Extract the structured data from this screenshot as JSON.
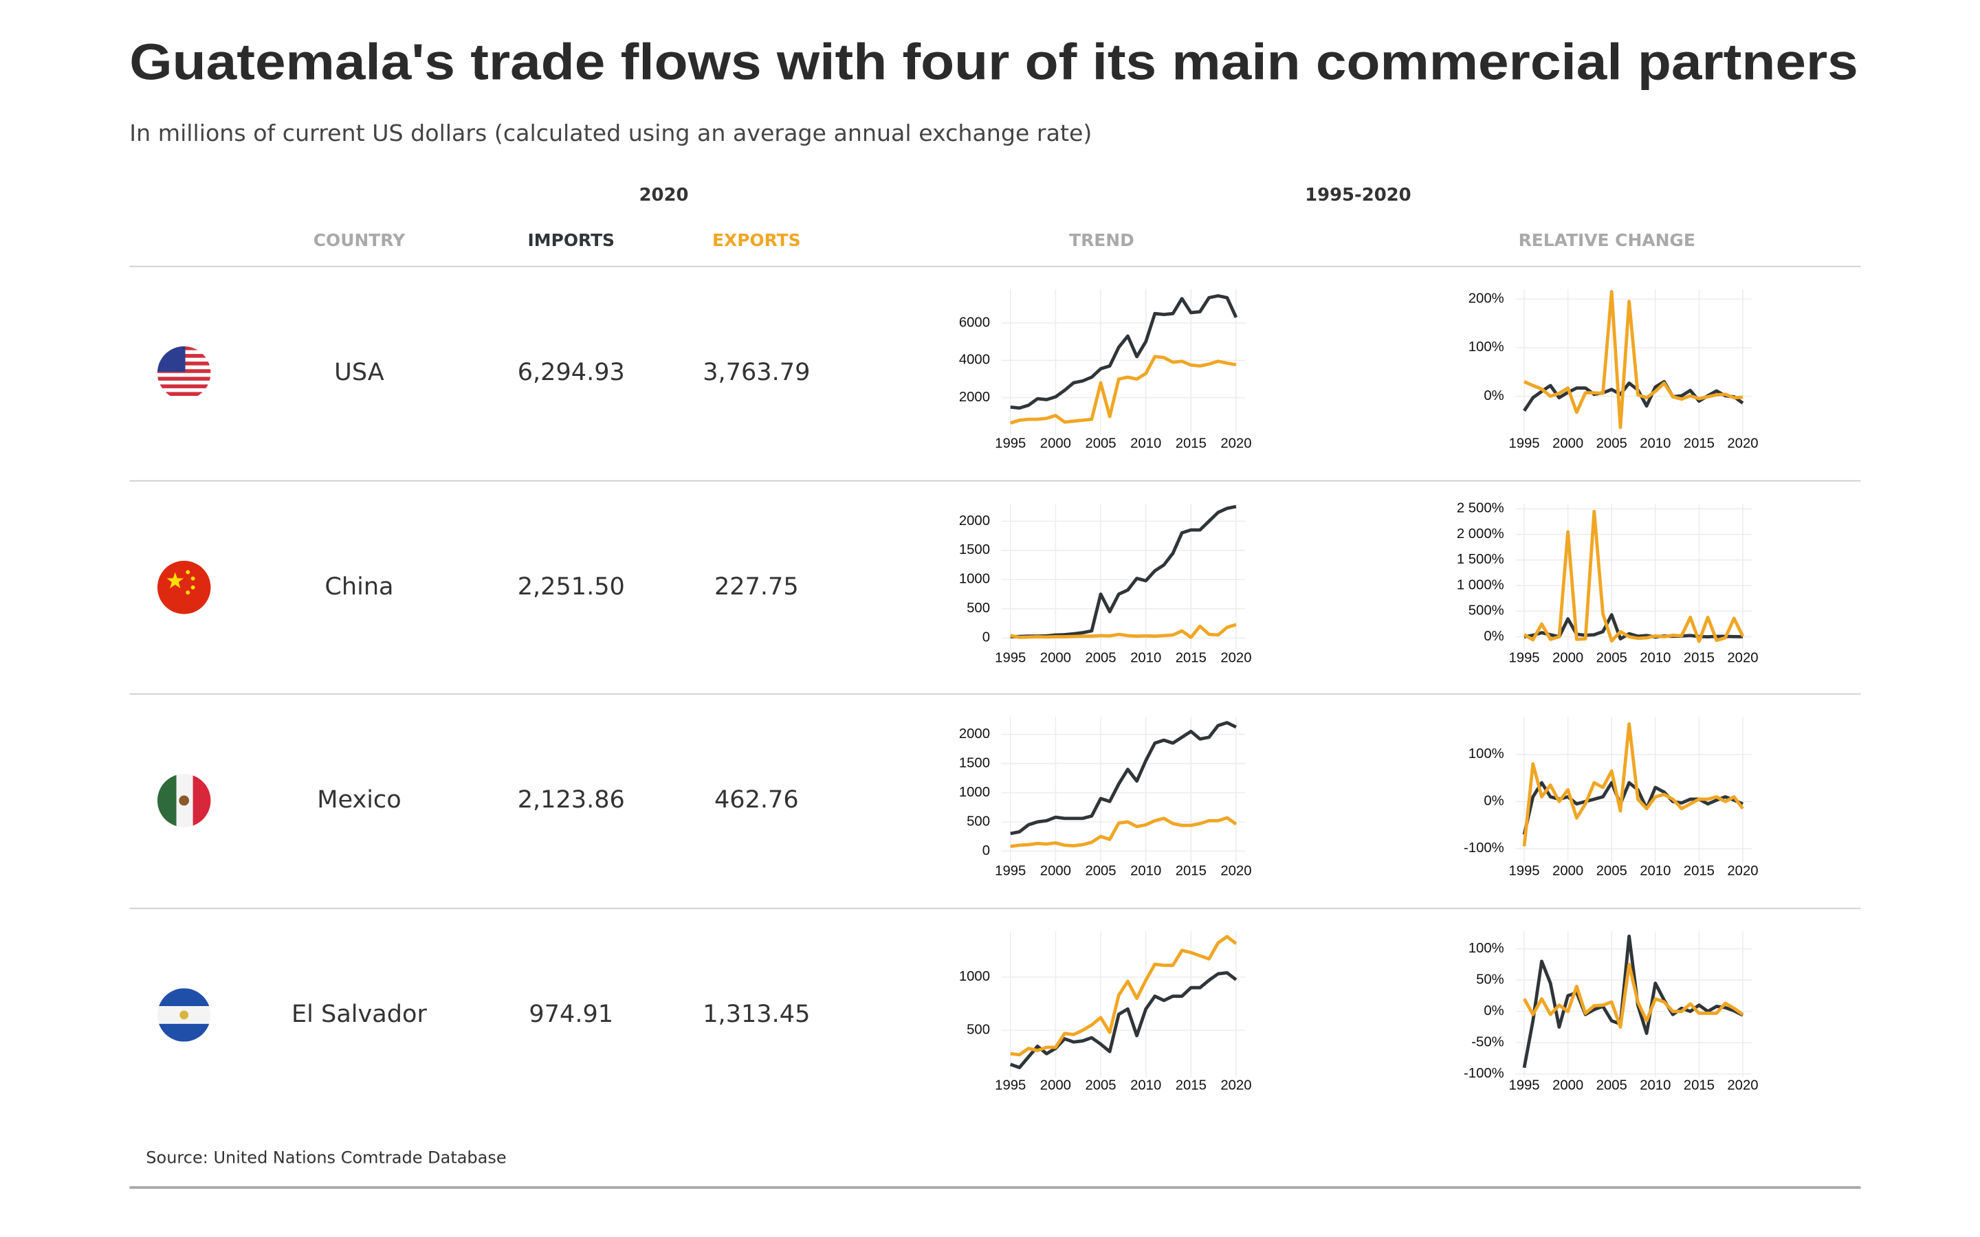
{
  "title": "Guatemala's trade flows with four of its main commercial partners",
  "subtitle": "In millions of current US dollars (calculated using an average annual exchange rate)",
  "table": {
    "group_headers": [
      "2020",
      "1995-2020"
    ],
    "columns": [
      "COUNTRY",
      "IMPORTS",
      "EXPORTS",
      "TREND",
      "RELATIVE CHANGE"
    ],
    "rows": [
      [
        "USA",
        "6,294.93",
        "3,763.79"
      ],
      [
        "China",
        "2,251.50",
        "227.75"
      ],
      [
        "Mexico",
        "2,123.86",
        "462.76"
      ],
      [
        "El Salvador",
        "974.91",
        "1,313.45"
      ]
    ]
  },
  "source": "Source: United Nations Comtrade Database",
  "chart_data": [
    {
      "type": "line",
      "x": [
        1995,
        1996,
        1997,
        1998,
        1999,
        2000,
        2001,
        2002,
        2003,
        2004,
        2005,
        2006,
        2007,
        2008,
        2009,
        2010,
        2011,
        2012,
        2013,
        2014,
        2015,
        2016,
        2017,
        2018,
        2019,
        2020
      ],
      "xlim": [
        1994,
        2021
      ],
      "xticks": [
        1995,
        2000,
        2005,
        2010,
        2015,
        2020
      ],
      "ylim": [
        0,
        7800
      ],
      "yticks": [
        2000,
        4000,
        6000
      ],
      "grid": true,
      "series": [
        {
          "color": "#2f3538",
          "values": [
            1500,
            1450,
            1600,
            1950,
            1900,
            2050,
            2400,
            2800,
            2900,
            3100,
            3550,
            3700,
            4700,
            5300,
            4200,
            5000,
            6500,
            6450,
            6500,
            7300,
            6550,
            6600,
            7350,
            7450,
            7350,
            6294.93
          ]
        },
        {
          "color": "#f0a624",
          "values": [
            650,
            800,
            850,
            850,
            900,
            1050,
            700,
            750,
            800,
            850,
            2800,
            1000,
            3000,
            3100,
            3000,
            3300,
            4200,
            4150,
            3900,
            3950,
            3750,
            3700,
            3800,
            3950,
            3850,
            3763.79
          ]
        }
      ]
    },
    {
      "type": "line",
      "x": [
        1995,
        1996,
        1997,
        1998,
        1999,
        2000,
        2001,
        2002,
        2003,
        2004,
        2005,
        2006,
        2007,
        2008,
        2009,
        2010,
        2011,
        2012,
        2013,
        2014,
        2015,
        2016,
        2017,
        2018,
        2019,
        2020
      ],
      "xlim": [
        1994,
        2021
      ],
      "xticks": [
        1995,
        2000,
        2005,
        2010,
        2015,
        2020
      ],
      "ylim": [
        -80,
        220
      ],
      "yticks": [
        {
          "value": 0,
          "label": "0%"
        },
        {
          "value": 100,
          "label": "100%"
        },
        {
          "value": 200,
          "label": "200%"
        }
      ],
      "grid": true,
      "series": [
        {
          "color": "#2f3538",
          "values": [
            -30,
            -3,
            10,
            22,
            -3,
            8,
            17,
            17,
            4,
            7,
            14,
            4,
            27,
            13,
            -20,
            19,
            30,
            -1,
            1,
            12,
            -10,
            1,
            11,
            1,
            -1,
            -14
          ]
        },
        {
          "color": "#f0a624",
          "values": [
            30,
            22,
            15,
            0,
            6,
            17,
            -33,
            7,
            7,
            6,
            215,
            -64,
            195,
            3,
            -3,
            10,
            27,
            -1,
            -6,
            1,
            -5,
            -1,
            3,
            4,
            -3,
            -2
          ]
        }
      ]
    },
    {
      "type": "line",
      "x": [
        1995,
        1996,
        1997,
        1998,
        1999,
        2000,
        2001,
        2002,
        2003,
        2004,
        2005,
        2006,
        2007,
        2008,
        2009,
        2010,
        2011,
        2012,
        2013,
        2014,
        2015,
        2016,
        2017,
        2018,
        2019,
        2020
      ],
      "xlim": [
        1994,
        2021
      ],
      "xticks": [
        1995,
        2000,
        2005,
        2010,
        2015,
        2020
      ],
      "ylim": [
        -200,
        2300
      ],
      "yticks": [
        0,
        500,
        1000,
        1500,
        2000
      ],
      "grid": true,
      "series": [
        {
          "color": "#2f3538",
          "values": [
            20,
            25,
            30,
            30,
            35,
            50,
            55,
            70,
            90,
            120,
            750,
            450,
            750,
            820,
            1020,
            980,
            1150,
            1250,
            1450,
            1800,
            1850,
            1850,
            2000,
            2150,
            2220,
            2251.5
          ]
        },
        {
          "color": "#f0a624",
          "values": [
            40,
            10,
            15,
            20,
            15,
            20,
            20,
            25,
            30,
            30,
            40,
            35,
            60,
            40,
            30,
            35,
            30,
            40,
            50,
            120,
            10,
            200,
            60,
            50,
            180,
            227.75
          ]
        }
      ]
    },
    {
      "type": "line",
      "x": [
        1995,
        1996,
        1997,
        1998,
        1999,
        2000,
        2001,
        2002,
        2003,
        2004,
        2005,
        2006,
        2007,
        2008,
        2009,
        2010,
        2011,
        2012,
        2013,
        2014,
        2015,
        2016,
        2017,
        2018,
        2019,
        2020
      ],
      "xlim": [
        1994,
        2021
      ],
      "xticks": [
        1995,
        2000,
        2005,
        2010,
        2015,
        2020
      ],
      "ylim": [
        -250,
        2600
      ],
      "yticks": [
        {
          "value": 0,
          "label": "0%"
        },
        {
          "value": 500,
          "label": "500%"
        },
        {
          "value": 1000,
          "label": "1 000%"
        },
        {
          "value": 1500,
          "label": "1 500%"
        },
        {
          "value": 2000,
          "label": "2 000%"
        },
        {
          "value": 2500,
          "label": "2 500%"
        }
      ],
      "grid": true,
      "series": [
        {
          "color": "#2f3538",
          "values": [
            0,
            30,
            80,
            40,
            0,
            350,
            50,
            30,
            40,
            100,
            430,
            -40,
            60,
            10,
            25,
            -5,
            15,
            10,
            15,
            25,
            5,
            0,
            8,
            7,
            3,
            1
          ]
        },
        {
          "color": "#f0a624",
          "values": [
            40,
            -60,
            250,
            -50,
            0,
            2050,
            -50,
            -40,
            2450,
            450,
            -80,
            100,
            0,
            -30,
            -20,
            15,
            0,
            30,
            20,
            380,
            -90,
            380,
            -70,
            -20,
            360,
            10
          ]
        }
      ]
    },
    {
      "type": "line",
      "x": [
        1995,
        1996,
        1997,
        1998,
        1999,
        2000,
        2001,
        2002,
        2003,
        2004,
        2005,
        2006,
        2007,
        2008,
        2009,
        2010,
        2011,
        2012,
        2013,
        2014,
        2015,
        2016,
        2017,
        2018,
        2019,
        2020
      ],
      "xlim": [
        1994,
        2021
      ],
      "xticks": [
        1995,
        2000,
        2005,
        2010,
        2015,
        2020
      ],
      "ylim": [
        -200,
        2300
      ],
      "yticks": [
        0,
        500,
        1000,
        1500,
        2000
      ],
      "grid": true,
      "series": [
        {
          "color": "#2f3538",
          "values": [
            300,
            330,
            450,
            500,
            520,
            580,
            560,
            560,
            560,
            600,
            900,
            850,
            1150,
            1400,
            1200,
            1550,
            1850,
            1900,
            1850,
            1950,
            2050,
            1920,
            1950,
            2150,
            2200,
            2123.86
          ]
        },
        {
          "color": "#f0a624",
          "values": [
            80,
            100,
            110,
            130,
            120,
            140,
            100,
            90,
            110,
            150,
            250,
            200,
            480,
            500,
            420,
            450,
            520,
            560,
            470,
            440,
            440,
            470,
            520,
            520,
            570,
            462.76
          ]
        }
      ]
    },
    {
      "type": "line",
      "x": [
        1995,
        1996,
        1997,
        1998,
        1999,
        2000,
        2001,
        2002,
        2003,
        2004,
        2005,
        2006,
        2007,
        2008,
        2009,
        2010,
        2011,
        2012,
        2013,
        2014,
        2015,
        2016,
        2017,
        2018,
        2019,
        2020
      ],
      "xlim": [
        1994,
        2021
      ],
      "xticks": [
        1995,
        2000,
        2005,
        2010,
        2015,
        2020
      ],
      "ylim": [
        -130,
        180
      ],
      "yticks": [
        {
          "value": -100,
          "label": "-100%"
        },
        {
          "value": 0,
          "label": "0%"
        },
        {
          "value": 100,
          "label": "100%"
        }
      ],
      "grid": true,
      "series": [
        {
          "color": "#2f3538",
          "values": [
            -70,
            10,
            40,
            10,
            5,
            10,
            -5,
            0,
            5,
            10,
            40,
            -5,
            40,
            25,
            -15,
            30,
            20,
            0,
            -3,
            5,
            5,
            -5,
            3,
            10,
            3,
            -5
          ]
        },
        {
          "color": "#f0a624",
          "values": [
            -95,
            80,
            10,
            35,
            0,
            25,
            -35,
            -5,
            40,
            30,
            65,
            -20,
            165,
            5,
            -15,
            10,
            15,
            5,
            -15,
            -5,
            5,
            5,
            10,
            0,
            10,
            -15
          ]
        }
      ]
    },
    {
      "type": "line",
      "x": [
        1995,
        1996,
        1997,
        1998,
        1999,
        2000,
        2001,
        2002,
        2003,
        2004,
        2005,
        2006,
        2007,
        2008,
        2009,
        2010,
        2011,
        2012,
        2013,
        2014,
        2015,
        2016,
        2017,
        2018,
        2019,
        2020
      ],
      "xlim": [
        1994,
        2021
      ],
      "xticks": [
        1995,
        2000,
        2005,
        2010,
        2015,
        2020
      ],
      "ylim": [
        60,
        1430
      ],
      "yticks": [
        500,
        1000
      ],
      "grid": true,
      "series": [
        {
          "color": "#2f3538",
          "values": [
            180,
            150,
            250,
            350,
            280,
            330,
            420,
            390,
            400,
            430,
            370,
            300,
            650,
            700,
            450,
            700,
            820,
            780,
            820,
            820,
            900,
            900,
            970,
            1030,
            1040,
            974.91
          ]
        },
        {
          "color": "#f0a624",
          "values": [
            280,
            270,
            330,
            310,
            340,
            340,
            470,
            460,
            500,
            550,
            620,
            480,
            830,
            960,
            800,
            970,
            1120,
            1110,
            1110,
            1250,
            1230,
            1200,
            1170,
            1320,
            1380,
            1313.45
          ]
        }
      ]
    },
    {
      "type": "line",
      "x": [
        1995,
        1996,
        1997,
        1998,
        1999,
        2000,
        2001,
        2002,
        2003,
        2004,
        2005,
        2006,
        2007,
        2008,
        2009,
        2010,
        2011,
        2012,
        2013,
        2014,
        2015,
        2016,
        2017,
        2018,
        2019,
        2020
      ],
      "xlim": [
        1994,
        2021
      ],
      "xticks": [
        1995,
        2000,
        2005,
        2010,
        2015,
        2020
      ],
      "ylim": [
        -105,
        128
      ],
      "yticks": [
        {
          "value": -100,
          "label": "-100%"
        },
        {
          "value": -50,
          "label": "-50%"
        },
        {
          "value": 0,
          "label": "0%"
        },
        {
          "value": 50,
          "label": "50%"
        },
        {
          "value": 100,
          "label": "100%"
        }
      ],
      "grid": true,
      "series": [
        {
          "color": "#2f3538",
          "values": [
            -90,
            -15,
            80,
            45,
            -25,
            25,
            30,
            -5,
            3,
            8,
            -15,
            -20,
            120,
            10,
            -35,
            45,
            18,
            -5,
            5,
            0,
            10,
            0,
            8,
            6,
            1,
            -6
          ]
        },
        {
          "color": "#f0a624",
          "values": [
            20,
            -5,
            20,
            -5,
            10,
            0,
            40,
            -3,
            9,
            10,
            15,
            -25,
            75,
            15,
            -15,
            20,
            15,
            0,
            0,
            12,
            -3,
            -3,
            -3,
            13,
            5,
            -5
          ]
        }
      ]
    }
  ]
}
